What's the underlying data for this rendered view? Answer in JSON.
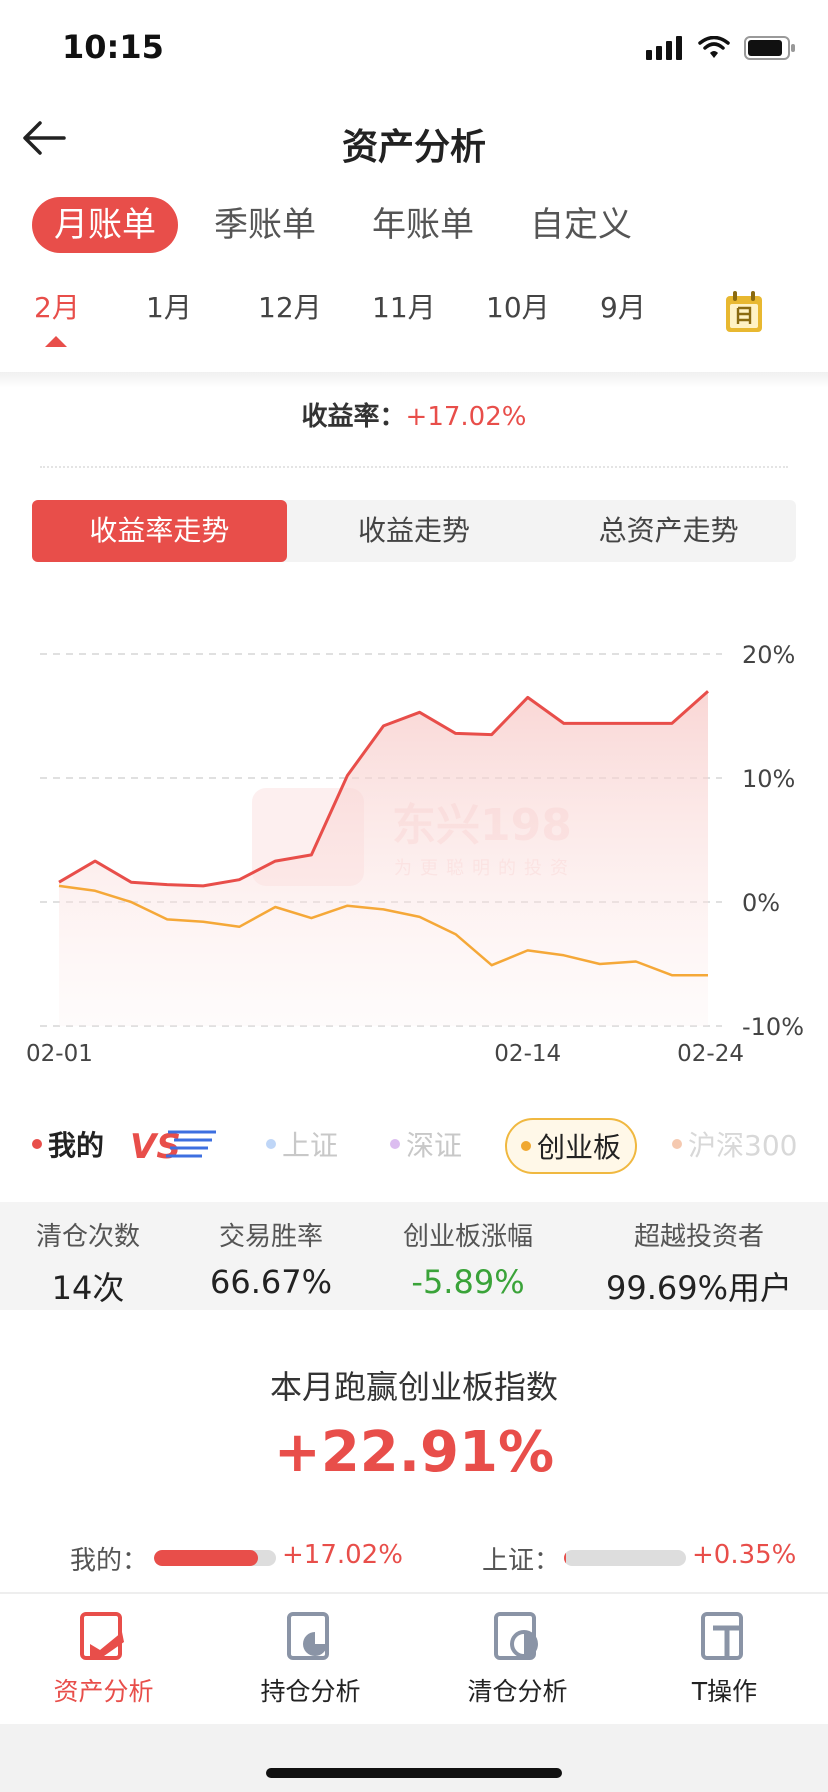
{
  "status": {
    "time": "10:15"
  },
  "header": {
    "title": "资产分析"
  },
  "period_tabs": [
    "月账单",
    "季账单",
    "年账单",
    "自定义"
  ],
  "months": [
    "2月",
    "1月",
    "12月",
    "11月",
    "10月",
    "9月"
  ],
  "yield": {
    "label": "收益率：",
    "value": "+17.02%"
  },
  "trend_tabs": [
    "收益率走势",
    "收益走势",
    "总资产走势"
  ],
  "chart_data": {
    "type": "line",
    "x": [
      "02-01",
      "02-02",
      "02-03",
      "02-04",
      "02-05",
      "02-06",
      "02-07",
      "02-08",
      "02-09",
      "02-10",
      "02-11",
      "02-12",
      "02-13",
      "02-14",
      "02-15",
      "02-16",
      "02-17",
      "02-18",
      "02-24"
    ],
    "x_tick_labels": [
      "02-01",
      "02-14",
      "02-24"
    ],
    "y_tick_labels": [
      "20%",
      "10%",
      "0%",
      "-10%"
    ],
    "ylim": [
      -10,
      20
    ],
    "grid": true,
    "watermark": {
      "brand": "东兴198",
      "slogan": "为更聪明的投资"
    },
    "series": [
      {
        "name": "我的",
        "color": "#e84e4a",
        "values": [
          1.6,
          3.3,
          1.6,
          1.4,
          1.3,
          1.8,
          3.3,
          3.8,
          10.2,
          14.2,
          15.3,
          13.6,
          13.5,
          16.5,
          14.4,
          14.4,
          14.4,
          14.4,
          17.0
        ]
      },
      {
        "name": "创业板",
        "color": "#f5a838",
        "values": [
          1.3,
          0.9,
          0.0,
          -1.4,
          -1.6,
          -2.0,
          -0.4,
          -1.3,
          -0.3,
          -0.6,
          -1.2,
          -2.6,
          -5.1,
          -3.9,
          -4.3,
          -5.0,
          -4.8,
          -5.9,
          -5.9
        ]
      }
    ]
  },
  "legend": {
    "mine": "我的",
    "vs": "VS",
    "items": [
      {
        "label": "上证",
        "color": "#bfd6f7"
      },
      {
        "label": "深证",
        "color": "#dcbdf0"
      },
      {
        "label": "创业板",
        "color": "#f0a830"
      },
      {
        "label": "沪深300",
        "color": "#f5c9b0"
      }
    ],
    "mine_color": "#e84e4a"
  },
  "stats": [
    {
      "label": "清仓次数",
      "value": "14次"
    },
    {
      "label": "交易胜率",
      "value": "66.67%"
    },
    {
      "label": "创业板涨幅",
      "value": "-5.89%"
    },
    {
      "label": "超越投资者",
      "value": "99.69%用户"
    }
  ],
  "outperform": {
    "title": "本月跑赢创业板指数",
    "value": "+22.91%"
  },
  "compare": {
    "mine_label": "我的：",
    "mine_value": "+17.02%",
    "mine_fraction": 0.85,
    "index_label": "上证：",
    "index_value": "+0.35%",
    "index_fraction": 0.02
  },
  "tabbar": [
    "资产分析",
    "持仓分析",
    "清仓分析",
    "T操作"
  ]
}
